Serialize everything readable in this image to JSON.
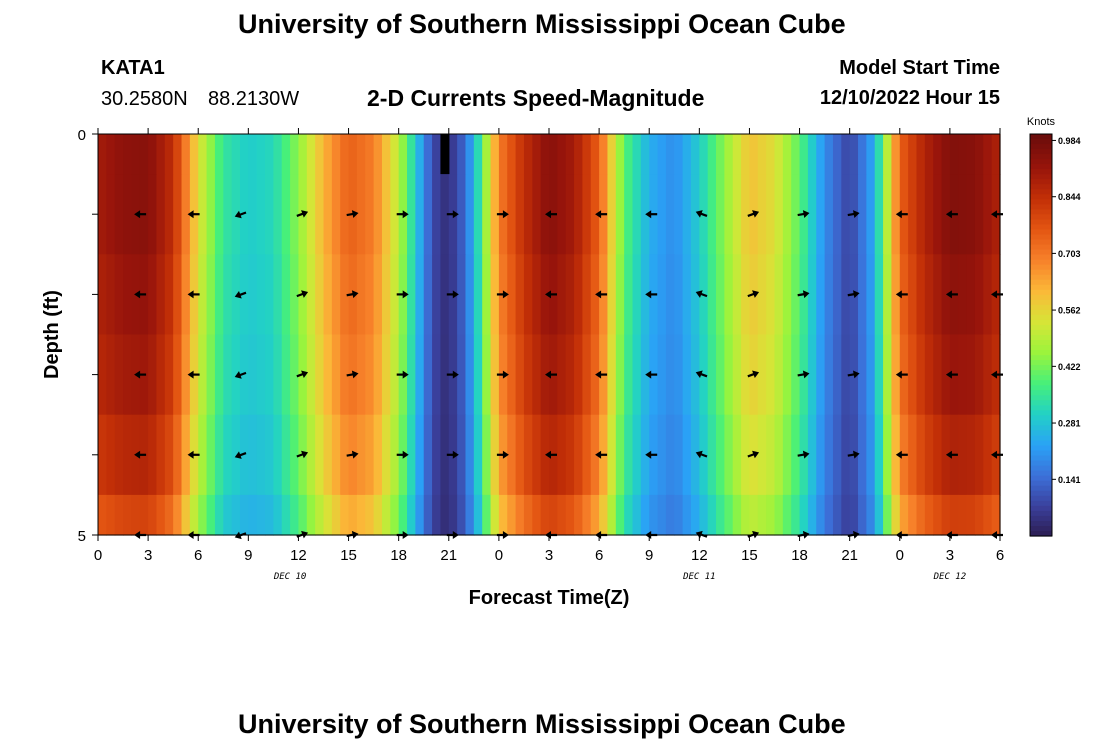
{
  "page_title": "University of Southern Mississippi Ocean Cube",
  "station": {
    "id": "KATA1",
    "latitude": "30.2580N",
    "longitude": "88.2130W"
  },
  "model": {
    "start_label": "Model Start Time",
    "start_value": "12/10/2022 Hour 15"
  },
  "footer_title": "University of Southern Mississippi Ocean Cube",
  "chart_data": {
    "type": "heatmap",
    "title": "2-D Currents Speed-Magnitude",
    "xlabel": "Forecast Time(Z)",
    "ylabel": "Depth (ft)",
    "x_tick_labels": [
      "0",
      "3",
      "6",
      "9",
      "12",
      "15",
      "18",
      "21",
      "0",
      "3",
      "6",
      "9",
      "12",
      "15",
      "18",
      "21",
      "0",
      "3",
      "6"
    ],
    "x_hours": [
      0,
      3,
      6,
      9,
      12,
      15,
      18,
      21,
      24,
      27,
      30,
      33,
      36,
      39,
      42,
      45,
      48,
      51,
      54
    ],
    "xlim": [
      0,
      54
    ],
    "y_tick_labels": [
      "0",
      "5"
    ],
    "ylim": [
      0,
      5
    ],
    "date_labels": [
      {
        "label": "DEC 10",
        "hour": 11.5
      },
      {
        "label": "DEC 11",
        "hour": 36
      },
      {
        "label": "DEC 12",
        "hour": 51
      }
    ],
    "colorbar": {
      "unit": "Knots",
      "ticks": [
        0.984,
        0.844,
        0.703,
        0.562,
        0.422,
        0.281,
        0.141
      ],
      "tick_labels": [
        "0.984",
        "0.844",
        "0.703",
        "0.562",
        "0.422",
        "0.281",
        "0.141"
      ],
      "range": [
        0.0,
        1.0
      ],
      "colors": [
        "#2b1a4c",
        "#3a3f9a",
        "#3c6fd8",
        "#2aa2f6",
        "#22d1c6",
        "#47f07a",
        "#9bf43c",
        "#d7e537",
        "#fbb838",
        "#f7812a",
        "#e35512",
        "#c22f07",
        "#97140b",
        "#6c0d0b"
      ]
    },
    "depth_rows": [
      {
        "top": 0.0,
        "bottom": 0.5
      },
      {
        "top": 0.5,
        "bottom": 1.5
      },
      {
        "top": 1.5,
        "bottom": 2.5
      },
      {
        "top": 2.5,
        "bottom": 3.5
      },
      {
        "top": 3.5,
        "bottom": 4.5
      },
      {
        "top": 4.5,
        "bottom": 5.0
      }
    ],
    "time_profile": {
      "hours": [
        0,
        1.5,
        3,
        4.5,
        6,
        7.5,
        9,
        10.5,
        12,
        13.5,
        15,
        16.5,
        18,
        19,
        20,
        20.7,
        21.5,
        22.5,
        24,
        25.5,
        27,
        28.5,
        30,
        31.5,
        33,
        34.5,
        36,
        37.5,
        39,
        40.5,
        42,
        43.5,
        45,
        46.5,
        48,
        49.5,
        51,
        52.5,
        54
      ],
      "speed": [
        0.9,
        0.94,
        0.95,
        0.85,
        0.55,
        0.35,
        0.3,
        0.32,
        0.45,
        0.62,
        0.75,
        0.7,
        0.5,
        0.3,
        0.1,
        0.05,
        0.08,
        0.25,
        0.7,
        0.85,
        0.95,
        0.9,
        0.75,
        0.4,
        0.25,
        0.2,
        0.3,
        0.45,
        0.6,
        0.55,
        0.4,
        0.2,
        0.08,
        0.25,
        0.75,
        0.88,
        0.96,
        0.95,
        0.88
      ]
    },
    "row_scale": [
      1.0,
      1.0,
      0.98,
      0.96,
      0.92,
      0.85
    ],
    "vectors": {
      "hours": [
        2.7,
        5.9,
        8.7,
        12.3,
        15.3,
        18.3,
        21.3,
        24.3,
        27.3,
        30.3,
        33.3,
        36.3,
        39.3,
        42.3,
        45.3,
        48.3,
        51.3,
        54
      ],
      "depths": [
        1,
        2,
        3,
        4,
        5
      ],
      "direction_deg": [
        180,
        180,
        200,
        20,
        10,
        0,
        0,
        0,
        180,
        180,
        180,
        160,
        20,
        10,
        10,
        180,
        180,
        180
      ]
    }
  }
}
